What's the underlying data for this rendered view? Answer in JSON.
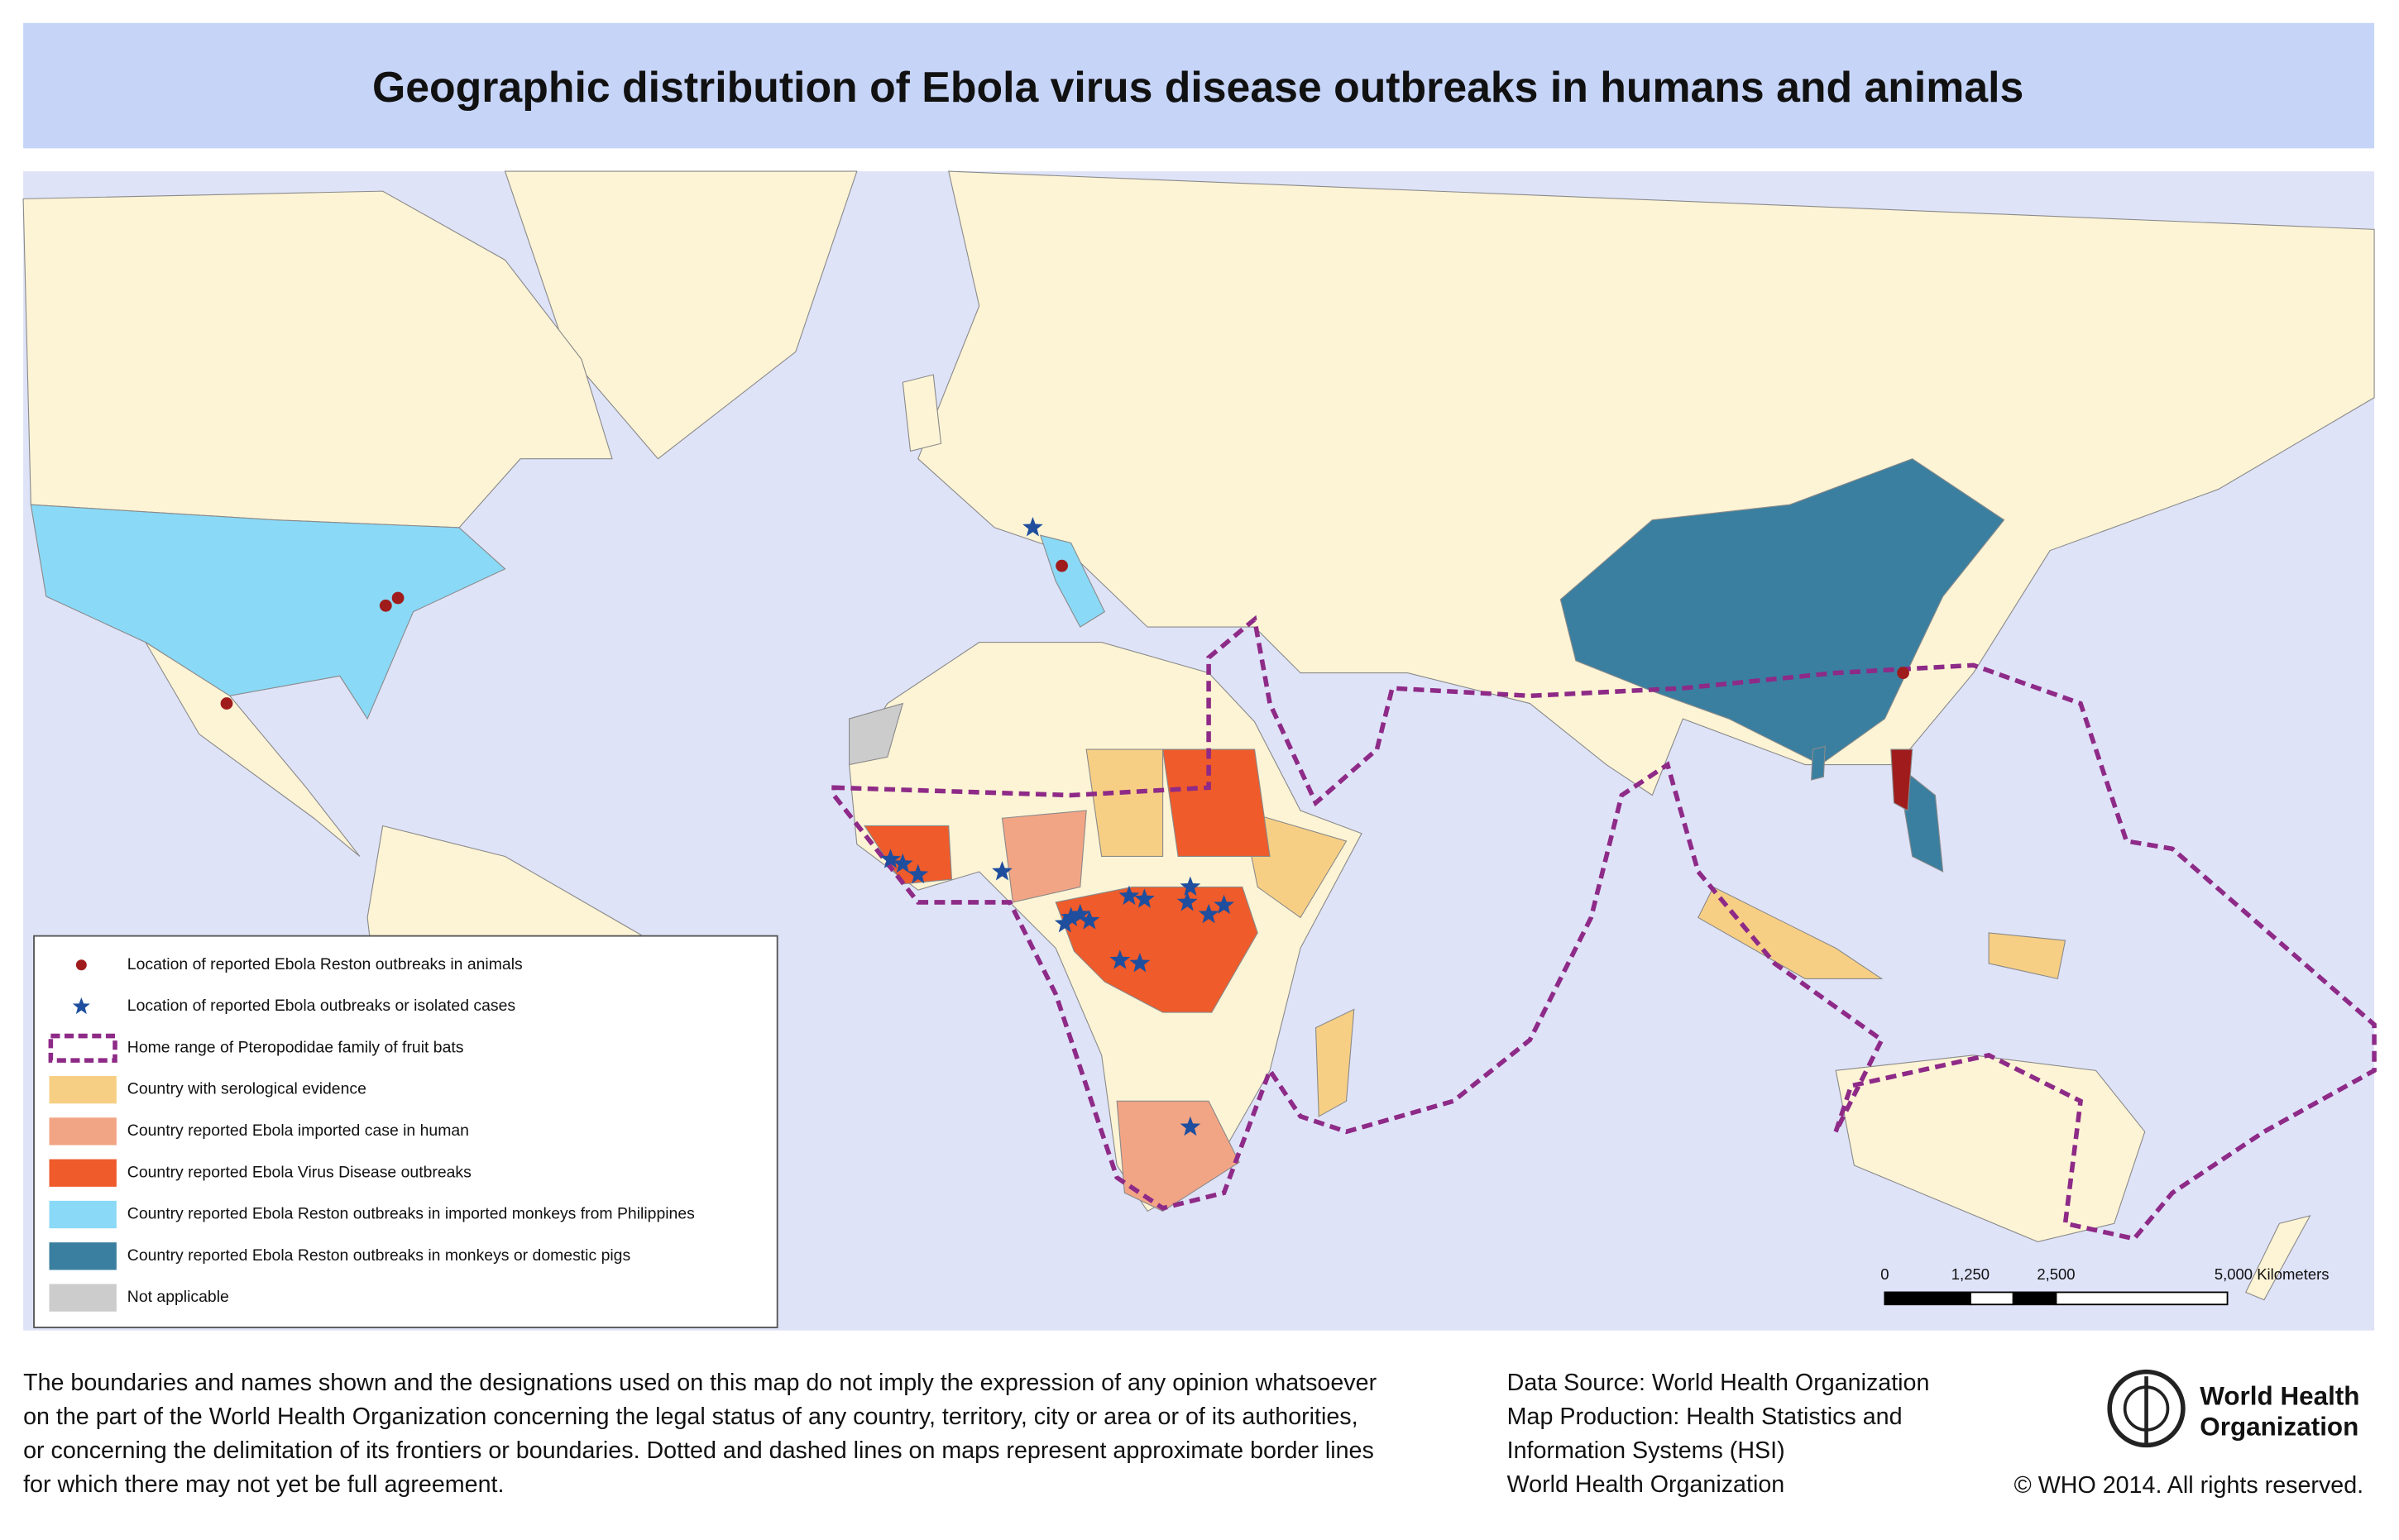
{
  "header": {
    "title": "Geographic distribution of Ebola virus disease outbreaks in humans and animals"
  },
  "legend": {
    "items": [
      {
        "label": "Location of reported Ebola Reston outbreaks in animals",
        "symbol": "dot",
        "color": "#a01c1c"
      },
      {
        "label": "Location of reported Ebola outbreaks or isolated cases",
        "symbol": "star",
        "color": "#1f4e9e"
      },
      {
        "label": "Home range of Pteropodidae family of  fruit bats",
        "symbol": "dashed",
        "color": "#8e2a87"
      },
      {
        "label": "Country with serological evidence",
        "symbol": "fill",
        "color": "#f7cf84"
      },
      {
        "label": "Country reported Ebola imported case in human",
        "symbol": "fill",
        "color": "#f2a585"
      },
      {
        "label": "Country reported Ebola Virus Disease outbreaks",
        "symbol": "fill",
        "color": "#ef5b2a"
      },
      {
        "label": "Country reported Ebola Reston outbreaks in imported monkeys from Philippines",
        "symbol": "fill",
        "color": "#8ad9f7"
      },
      {
        "label": "Country reported Ebola Reston outbreaks in monkeys or domestic pigs",
        "symbol": "fill",
        "color": "#3a7fa0"
      },
      {
        "label": "Not applicable",
        "symbol": "fill",
        "color": "#cccccc"
      }
    ]
  },
  "scale_bar": {
    "labels": [
      "0",
      "1,250",
      "2,500",
      "5,000 Kilometers"
    ]
  },
  "disclaimer": {
    "lines": [
      "The boundaries and names shown and the designations used on this map do not imply the expression of any opinion whatsoever",
      "on the part of the World Health Organization concerning the legal status of any country, territory, city or area or of its authorities,",
      "or concerning the delimitation of its frontiers or boundaries. Dotted and dashed lines on maps represent approximate border lines",
      "for which there may not yet be full agreement."
    ]
  },
  "source": {
    "lines": [
      "Data Source: World Health Organization",
      "Map Production: Health Statistics and",
      "Information Systems (HSI)",
      "World Health Organization"
    ]
  },
  "logo": {
    "lines": [
      "World Health",
      "Organization"
    ]
  },
  "copyright": "© WHO 2014. All rights reserved."
}
